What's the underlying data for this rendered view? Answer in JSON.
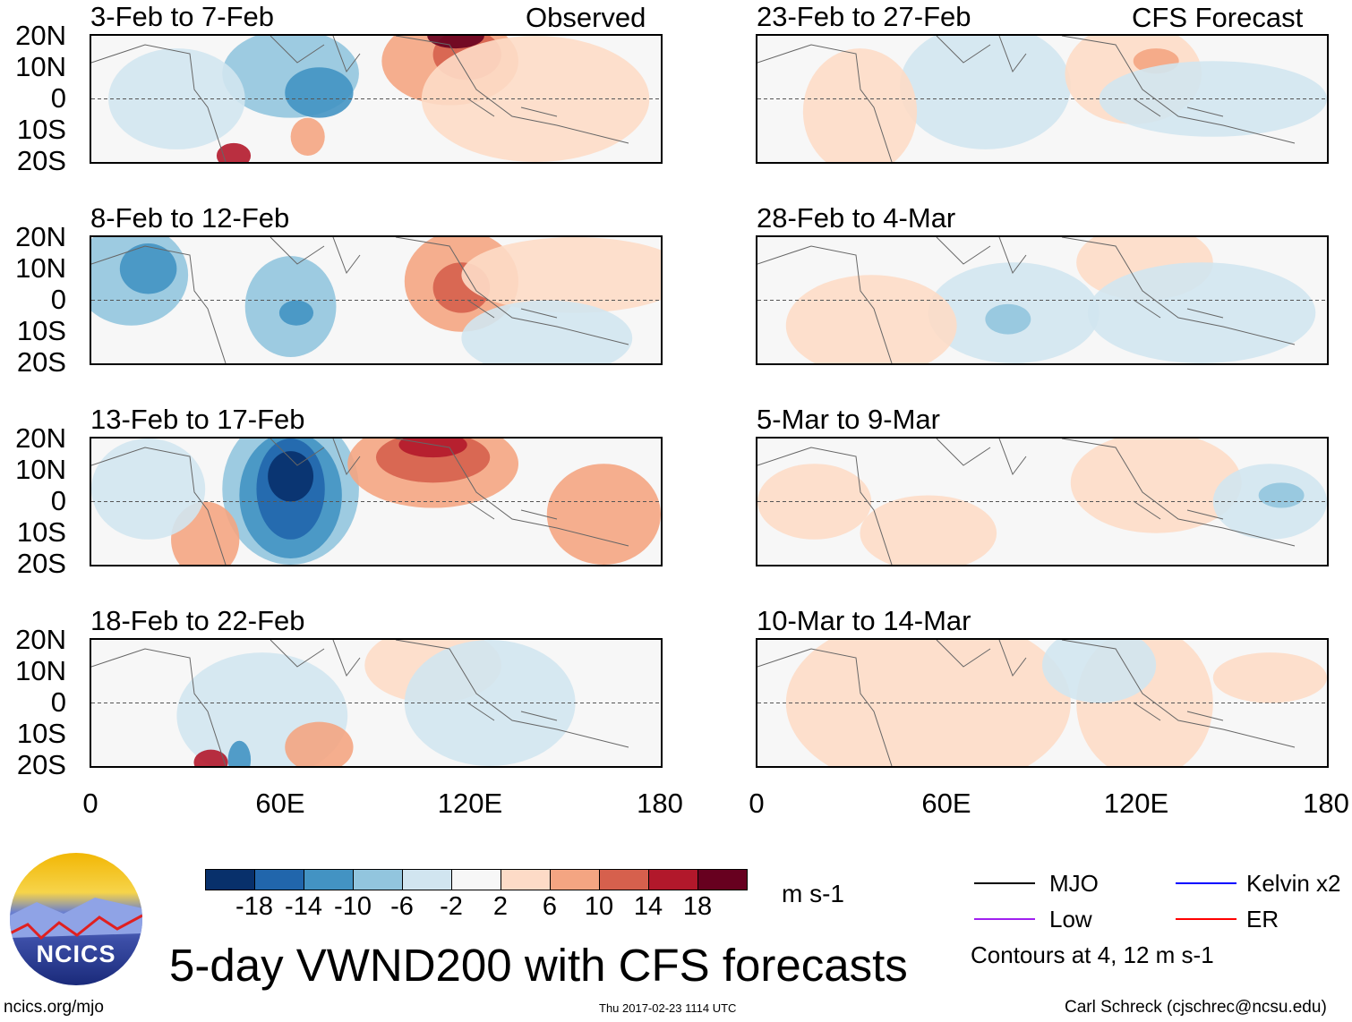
{
  "header": {
    "left_label": "Observed",
    "right_label": "CFS Forecast"
  },
  "lat_ticks": [
    "20N",
    "10N",
    "0",
    "10S",
    "20S"
  ],
  "lon_ticks": [
    "0",
    "60E",
    "120E",
    "180"
  ],
  "panels": [
    {
      "title": "3-Feb to 7-Feb",
      "type": "observed"
    },
    {
      "title": "8-Feb to 12-Feb",
      "type": "observed"
    },
    {
      "title": "13-Feb to 17-Feb",
      "type": "observed"
    },
    {
      "title": "18-Feb to 22-Feb",
      "type": "observed"
    },
    {
      "title": "23-Feb to 27-Feb",
      "type": "forecast"
    },
    {
      "title": "28-Feb to 4-Mar",
      "type": "forecast"
    },
    {
      "title": "5-Mar to 9-Mar",
      "type": "forecast"
    },
    {
      "title": "10-Mar to 14-Mar",
      "type": "forecast"
    }
  ],
  "colorbar": {
    "colors": [
      "#08306b",
      "#2166ac",
      "#4393c3",
      "#92c5de",
      "#d1e5f0",
      "#f7f7f7",
      "#fddbc7",
      "#f4a582",
      "#d6604d",
      "#b2182b",
      "#67001f"
    ],
    "labels": [
      "-18",
      "-14",
      "-10",
      "-6",
      "-2",
      "2",
      "6",
      "10",
      "14",
      "18"
    ],
    "units": "m s-1"
  },
  "legend": {
    "items": [
      {
        "label": "MJO",
        "color": "#000000"
      },
      {
        "label": "Kelvin x2",
        "color": "#0000ff"
      },
      {
        "label": "Low",
        "color": "#a020f0"
      },
      {
        "label": "ER",
        "color": "#ff0000"
      }
    ],
    "note": "Contours at 4, 12 m s-1"
  },
  "footer": {
    "logo_text": "NCICS",
    "main_title": "5-day VWND200 with CFS forecasts",
    "url": "ncics.org/mjo",
    "timestamp": "Thu 2017-02-23 1114 UTC",
    "credit": "Carl Schreck (cjschrec@ncsu.edu)"
  }
}
